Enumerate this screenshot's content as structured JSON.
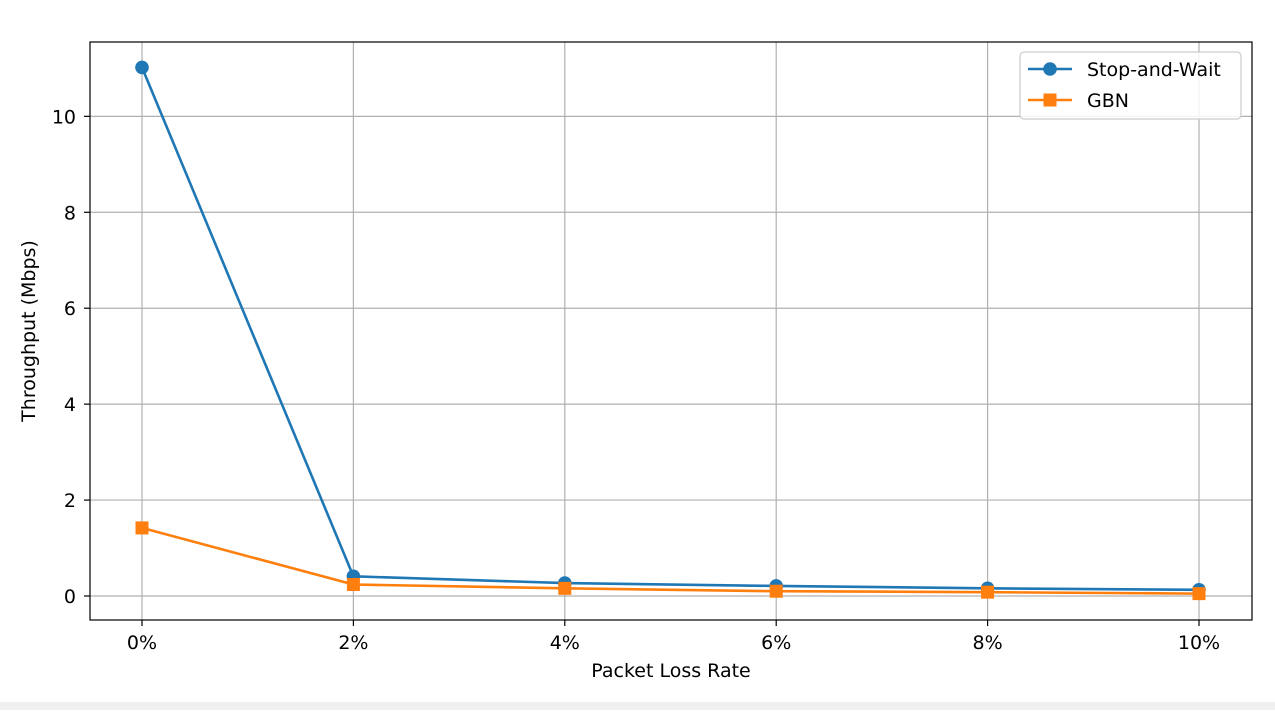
{
  "chart_data": {
    "type": "line",
    "title": "",
    "xlabel": "Packet Loss Rate",
    "ylabel": "Throughput (Mbps)",
    "categories": [
      "0%",
      "2%",
      "4%",
      "6%",
      "8%",
      "10%"
    ],
    "ylim": [
      -0.5,
      11.55
    ],
    "y_ticks": [
      0,
      2,
      4,
      6,
      8,
      10
    ],
    "grid": true,
    "legend_position": "top-right",
    "series": [
      {
        "name": "Stop-and-Wait",
        "values": [
          11.02,
          0.41,
          0.27,
          0.21,
          0.16,
          0.13
        ],
        "color": "#1f77b4",
        "marker": "circle"
      },
      {
        "name": "GBN",
        "values": [
          1.42,
          0.24,
          0.16,
          0.1,
          0.08,
          0.05
        ],
        "color": "#ff7f0e",
        "marker": "square"
      }
    ]
  }
}
